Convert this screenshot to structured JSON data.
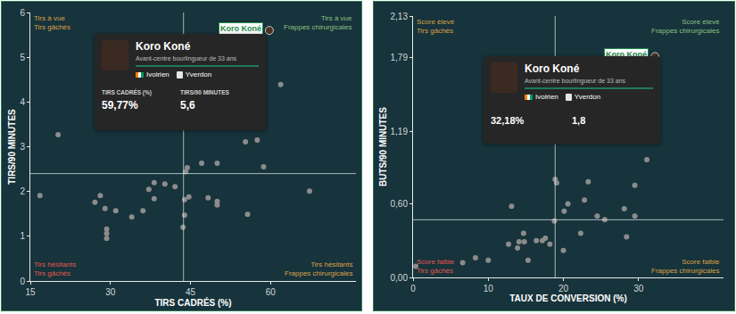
{
  "chart_data": [
    {
      "type": "scatter",
      "x_label": "TIRS CADRÉS (%)",
      "y_label": "TIRS/90 MINUTES",
      "xlim": [
        15,
        76
      ],
      "ylim": [
        0,
        6
      ],
      "xticks": [
        15,
        30,
        45,
        60
      ],
      "yticks": [
        0,
        1,
        2,
        3,
        4,
        5,
        6
      ],
      "x_reference": 43.7,
      "y_reference": 2.4,
      "x": [
        16.8,
        20.2,
        27.1,
        28.1,
        29.0,
        29.3,
        29.3,
        29.3,
        31.0,
        34.0,
        36.1,
        37.2,
        38.2,
        38.2,
        40.2,
        42.1,
        43.6,
        43.9,
        43.9,
        44.1,
        44.4,
        44.7,
        47.1,
        48.3,
        50.0,
        50.0,
        50.0,
        55.3,
        55.7,
        57.5,
        58.7,
        61.9,
        67.3
      ],
      "values": [
        1.91,
        3.27,
        1.76,
        1.91,
        1.62,
        1.16,
        1.06,
        0.95,
        1.57,
        1.43,
        1.57,
        2.05,
        2.2,
        1.84,
        2.17,
        2.11,
        1.2,
        1.47,
        1.82,
        2.44,
        2.53,
        1.88,
        2.63,
        1.86,
        2.63,
        1.78,
        1.7,
        3.11,
        1.49,
        3.15,
        2.55,
        4.39,
        2.01
      ],
      "quadrants": {
        "top_left": [
          "Tirs à vue",
          "Tirs gâchés"
        ],
        "top_right": [
          "Tirs à vue",
          "Frappes chirurgicales"
        ],
        "bottom_left": [
          "Tirs hésitants",
          "Tirs gâchés"
        ],
        "bottom_right": [
          "Tirs hésitants",
          "Frappes chirurgicales"
        ]
      },
      "highlight": {
        "name": "Koro Koné",
        "subtitle": "Avant-centre bourlingueur de 33 ans",
        "nationality": "Ivoirien",
        "club": "Yverdon",
        "x": 59.77,
        "y": 5.6,
        "stat_names": [
          "TIRS CADRÉS (%)",
          "TIRS/90 MINUTES"
        ],
        "value_labels": [
          "59,77%",
          "5,6"
        ]
      }
    },
    {
      "type": "scatter",
      "x_label": "TAUX DE CONVERSION (%)",
      "y_label": "BUTS/90 MINUTES",
      "xlim": [
        0,
        41.3
      ],
      "ylim": [
        0,
        2.13
      ],
      "xticks": [
        0,
        10,
        20,
        30
      ],
      "yticks": [
        {
          "value": 0,
          "label": "0,00"
        },
        {
          "value": 0.6,
          "label": "0,60"
        },
        {
          "value": 1.19,
          "label": "1,19"
        },
        {
          "value": 1.79,
          "label": "1,79"
        },
        {
          "value": 2.13,
          "label": "2,13"
        }
      ],
      "x_reference": 18.9,
      "y_reference": 0.47,
      "x": [
        0.35,
        6.6,
        8.3,
        10.0,
        12.7,
        13.1,
        13.9,
        14.1,
        14.7,
        14.8,
        15.3,
        16.4,
        17.2,
        17.6,
        18.2,
        18.8,
        18.9,
        19.1,
        20.0,
        20.1,
        20.6,
        22.3,
        23.3,
        22.8,
        24.5,
        25.5,
        28.1,
        28.4,
        29.5,
        29.5,
        31.1
      ],
      "values": [
        0.09,
        0.12,
        0.16,
        0.14,
        0.27,
        0.58,
        0.24,
        0.29,
        0.36,
        0.29,
        0.14,
        0.3,
        0.3,
        0.32,
        0.27,
        0.46,
        0.8,
        0.77,
        0.22,
        0.54,
        0.6,
        0.36,
        0.78,
        0.63,
        0.5,
        0.47,
        0.56,
        0.33,
        0.75,
        0.5,
        0.96
      ],
      "quadrants": {
        "top_left": [
          "Score élevé",
          "Tirs gâchés"
        ],
        "top_right": [
          "Score élevé",
          "Frappes chirurgicales"
        ],
        "bottom_left": [
          "Score faible",
          "Tirs gâchés"
        ],
        "bottom_right": [
          "Score faible",
          "Frappes chirurgicales"
        ]
      },
      "highlight": {
        "name": "Koro Koné",
        "subtitle": "Avant-centre bourlingueur de 33 ans",
        "nationality": "Ivoirien",
        "club": "Yverdon",
        "x": 32.18,
        "y": 1.8,
        "value_labels": [
          "32,18%",
          "1,8"
        ]
      }
    }
  ]
}
